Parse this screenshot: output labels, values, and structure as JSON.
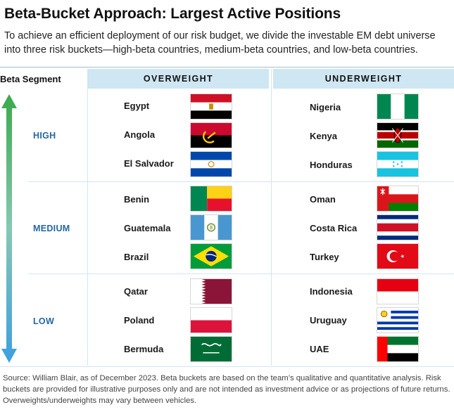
{
  "title": "Beta-Bucket Approach: Largest Active Positions",
  "subtitle": "To achieve an efficient deployment of our risk budget, we divide the investable EM debt universe into three risk buckets—high-beta countries, medium-beta countries, and low-beta countries.",
  "table": {
    "segment_header": "Beta Segment",
    "overweight_header": "OVERWEIGHT",
    "underweight_header": "UNDERWEIGHT",
    "segments": [
      {
        "label": "HIGH",
        "overweight": [
          {
            "country": "Egypt",
            "flag": "egypt-flag"
          },
          {
            "country": "Angola",
            "flag": "angola-flag"
          },
          {
            "country": "El Salvador",
            "flag": "el-salvador-flag"
          }
        ],
        "underweight": [
          {
            "country": "Nigeria",
            "flag": "nigeria-flag"
          },
          {
            "country": "Kenya",
            "flag": "kenya-flag"
          },
          {
            "country": "Honduras",
            "flag": "honduras-flag"
          }
        ]
      },
      {
        "label": "MEDIUM",
        "overweight": [
          {
            "country": "Benin",
            "flag": "benin-flag"
          },
          {
            "country": "Guatemala",
            "flag": "guatemala-flag"
          },
          {
            "country": "Brazil",
            "flag": "brazil-flag"
          }
        ],
        "underweight": [
          {
            "country": "Oman",
            "flag": "oman-flag"
          },
          {
            "country": "Costa Rica",
            "flag": "costa-rica-flag"
          },
          {
            "country": "Turkey",
            "flag": "turkey-flag"
          }
        ]
      },
      {
        "label": "LOW",
        "overweight": [
          {
            "country": "Qatar",
            "flag": "qatar-flag"
          },
          {
            "country": "Poland",
            "flag": "poland-flag"
          },
          {
            "country": "Bermuda",
            "flag": "bermuda-flag"
          }
        ],
        "underweight": [
          {
            "country": "Indonesia",
            "flag": "indonesia-flag"
          },
          {
            "country": "Uruguay",
            "flag": "uruguay-flag"
          },
          {
            "country": "UAE",
            "flag": "uae-flag"
          }
        ]
      }
    ]
  },
  "colors": {
    "header_fill": "#cfe6f3",
    "segment_label": "#2566a8",
    "arrow_top": "#3aaa4a",
    "arrow_bottom": "#3d9fe0"
  },
  "footer": "Source: William Blair, as of December 2023. Beta buckets are based on the team’s qualitative and quantitative analysis. Risk buckets are provided for illustrative purposes only and are not intended as investment advice or as projections of future returns. Overweights/underweights may vary between vehicles."
}
